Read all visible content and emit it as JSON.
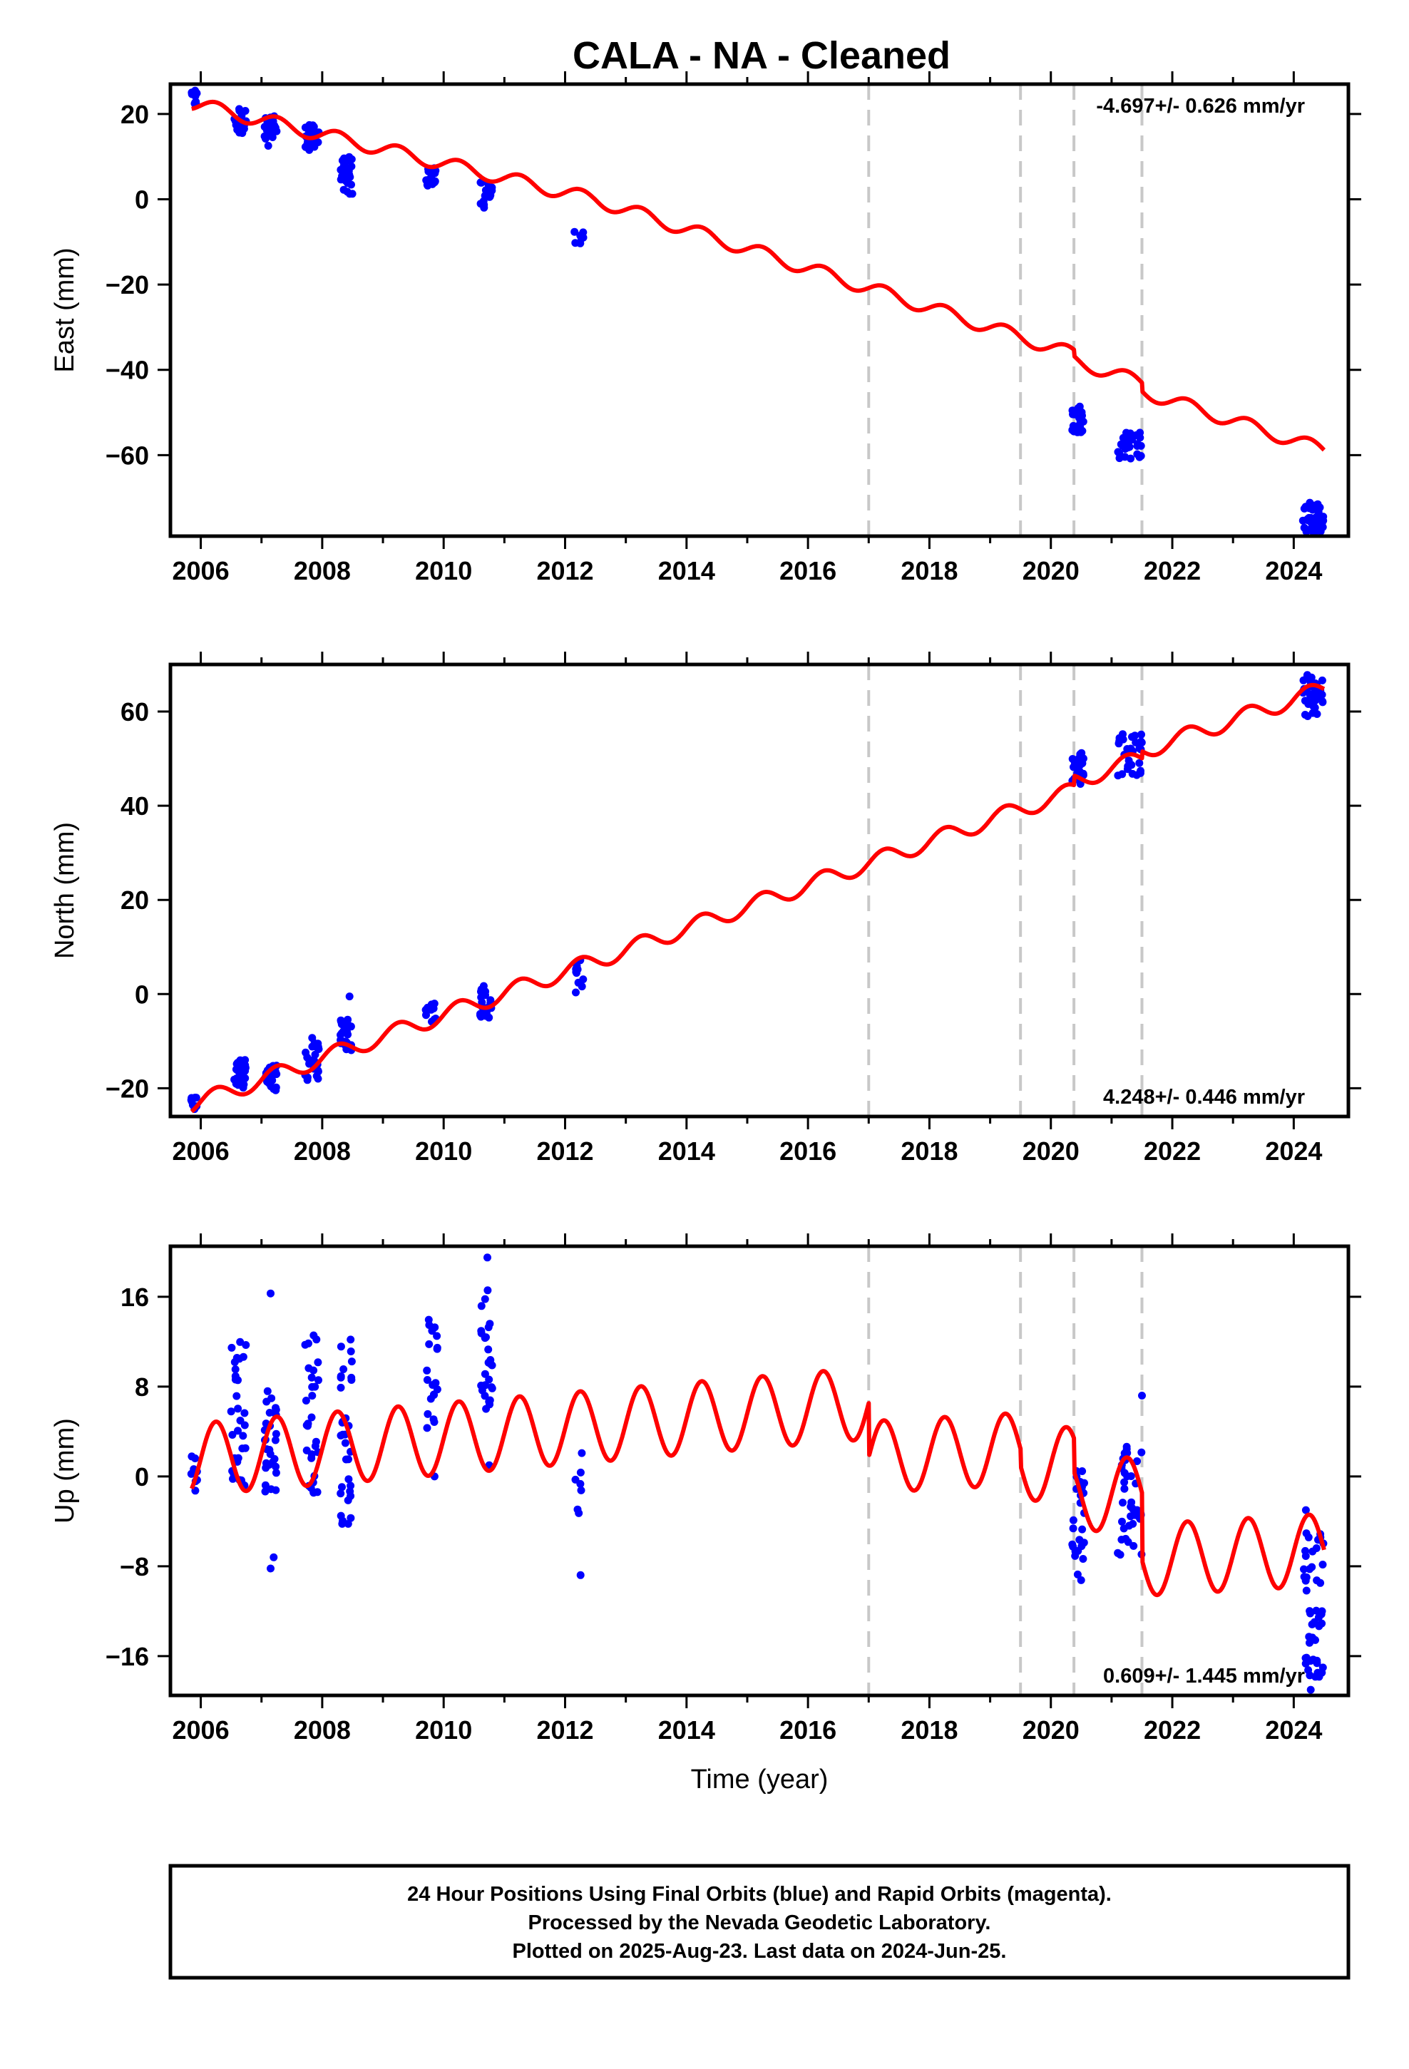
{
  "title": "CALA  - NA - Cleaned",
  "x_axis_label": "Time (year)",
  "x_ticks": [
    2006,
    2008,
    2010,
    2012,
    2014,
    2016,
    2018,
    2020,
    2022,
    2024
  ],
  "x_range": [
    2005.5,
    2024.9
  ],
  "step_epochs": [
    2017.0,
    2019.5,
    2020.38,
    2021.5
  ],
  "colors": {
    "data_points": "#0000ff",
    "model_line": "#ff0000",
    "step_lines": "#c8c8c8",
    "frame": "#000000"
  },
  "footer": {
    "line1": "24 Hour Positions Using Final Orbits (blue) and Rapid Orbits (magenta).",
    "line2": "Processed by the Nevada Geodetic Laboratory.",
    "line3": "Plotted on 2025-Aug-23. Last data on 2024-Jun-25."
  },
  "chart_data": [
    {
      "type": "scatter",
      "panel": "east",
      "ylabel": "East (mm)",
      "ylim": [
        -79,
        27
      ],
      "y_ticks": [
        20,
        0,
        -20,
        -40,
        -60
      ],
      "y_tick_labels": [
        "20",
        "0",
        "−20",
        "−40",
        "−60"
      ],
      "rate_text": "-4.697+/- 0.626 mm/yr",
      "rate_position": "top-right",
      "model": {
        "name": "model fit",
        "start_value": 22.5,
        "segments": [
          {
            "from": 2005.85,
            "to": 2012.5,
            "slope": -3.4
          },
          {
            "from": 2012.5,
            "to": 2024.5,
            "slope": -4.6
          }
        ],
        "seasonal_amplitude": 1.6,
        "steps": [
          {
            "x": 2020.38,
            "dy": -1.5
          },
          {
            "x": 2021.5,
            "dy": -2.0
          }
        ]
      },
      "clusters": [
        {
          "x": [
            2005.83,
            2005.95
          ],
          "y": [
            21.5,
            25.5
          ],
          "n": 10
        },
        {
          "x": [
            2006.55,
            2006.75
          ],
          "y": [
            15.5,
            21.5
          ],
          "n": 28
        },
        {
          "x": [
            2007.05,
            2007.25
          ],
          "y": [
            12.5,
            19.5
          ],
          "n": 26
        },
        {
          "x": [
            2007.7,
            2007.95
          ],
          "y": [
            11.5,
            17.5
          ],
          "n": 26
        },
        {
          "x": [
            2008.3,
            2008.5
          ],
          "y": [
            1,
            10
          ],
          "n": 30
        },
        {
          "x": [
            2009.7,
            2009.9
          ],
          "y": [
            3,
            7.5
          ],
          "n": 20
        },
        {
          "x": [
            2010.6,
            2010.8
          ],
          "y": [
            -2,
            4
          ],
          "n": 22
        },
        {
          "x": [
            2012.15,
            2012.3
          ],
          "y": [
            -11,
            -6
          ],
          "n": 8
        },
        {
          "x": [
            2020.35,
            2020.55
          ],
          "y": [
            -55,
            -48.5
          ],
          "n": 22
        },
        {
          "x": [
            2021.1,
            2021.5
          ],
          "y": [
            -61,
            -54.5
          ],
          "n": 30
        },
        {
          "x": [
            2024.15,
            2024.5
          ],
          "y": [
            -78,
            -71
          ],
          "n": 40
        }
      ]
    },
    {
      "type": "scatter",
      "panel": "north",
      "ylabel": "North (mm)",
      "ylim": [
        -26,
        70
      ],
      "y_ticks": [
        60,
        40,
        20,
        0,
        -20
      ],
      "y_tick_labels": [
        "60",
        "40",
        "20",
        "0",
        "−20"
      ],
      "rate_text": "4.248+/- 0.446 mm/yr",
      "rate_position": "bottom-right",
      "model": {
        "name": "model fit",
        "start_value": -23.5,
        "segments": [
          {
            "from": 2005.85,
            "to": 2019.5,
            "slope": 4.6
          },
          {
            "from": 2019.5,
            "to": 2024.5,
            "slope": 4.4
          }
        ],
        "seasonal_amplitude": 1.8,
        "steps": [
          {
            "x": 2020.38,
            "dy": 2.0
          },
          {
            "x": 2021.5,
            "dy": 1.5
          }
        ]
      },
      "clusters": [
        {
          "x": [
            2005.83,
            2005.95
          ],
          "y": [
            -24.5,
            -21.5
          ],
          "n": 8
        },
        {
          "x": [
            2006.55,
            2006.75
          ],
          "y": [
            -20,
            -14
          ],
          "n": 26
        },
        {
          "x": [
            2007.05,
            2007.25
          ],
          "y": [
            -20.5,
            -15
          ],
          "n": 24
        },
        {
          "x": [
            2007.7,
            2007.95
          ],
          "y": [
            -18.5,
            -9
          ],
          "n": 26
        },
        {
          "x": [
            2008.3,
            2008.5
          ],
          "y": [
            -12,
            -5
          ],
          "n": 28
        },
        {
          "x": [
            2009.7,
            2009.9
          ],
          "y": [
            -6,
            -1.5
          ],
          "n": 14
        },
        {
          "x": [
            2010.6,
            2010.8
          ],
          "y": [
            -5,
            2.5
          ],
          "n": 22
        },
        {
          "x": [
            2012.15,
            2012.3
          ],
          "y": [
            0,
            8
          ],
          "n": 10
        },
        {
          "x": [
            2020.35,
            2020.55
          ],
          "y": [
            44.5,
            51.5
          ],
          "n": 22
        },
        {
          "x": [
            2021.1,
            2021.5
          ],
          "y": [
            46,
            55.5
          ],
          "n": 30
        },
        {
          "x": [
            2024.15,
            2024.5
          ],
          "y": [
            59,
            68
          ],
          "n": 40
        }
      ],
      "outliers": [
        {
          "x": 2008.45,
          "y": -0.5
        }
      ]
    },
    {
      "type": "scatter",
      "panel": "up",
      "ylabel": "Up (mm)",
      "ylim": [
        -19.5,
        20.5
      ],
      "y_ticks": [
        16,
        8,
        0,
        -8,
        -16
      ],
      "y_tick_labels": [
        "16",
        "8",
        "0",
        "−8",
        "−16"
      ],
      "rate_text": "0.609+/- 1.445 mm/yr",
      "rate_position": "bottom-right",
      "model": {
        "name": "model fit",
        "start_value": 1.5,
        "segments": [
          {
            "from": 2005.85,
            "to": 2017.0,
            "slope": 0.45
          },
          {
            "from": 2017.0,
            "to": 2024.5,
            "slope": 0.3
          }
        ],
        "seasonal_amplitude": 3.2,
        "steps": [
          {
            "x": 2017.0,
            "dy": -4.8
          },
          {
            "x": 2019.5,
            "dy": -1.5
          },
          {
            "x": 2020.38,
            "dy": -3.0
          },
          {
            "x": 2021.5,
            "dy": -6.0
          }
        ]
      },
      "clusters": [
        {
          "x": [
            2005.83,
            2005.95
          ],
          "y": [
            -2.5,
            2.5
          ],
          "n": 8
        },
        {
          "x": [
            2006.5,
            2006.75
          ],
          "y": [
            -1.5,
            12.5
          ],
          "n": 32
        },
        {
          "x": [
            2007.05,
            2007.25
          ],
          "y": [
            -2,
            8
          ],
          "n": 28
        },
        {
          "x": [
            2007.7,
            2007.95
          ],
          "y": [
            -1.5,
            13
          ],
          "n": 30
        },
        {
          "x": [
            2008.3,
            2008.5
          ],
          "y": [
            -4.5,
            12.5
          ],
          "n": 34
        },
        {
          "x": [
            2009.7,
            2009.9
          ],
          "y": [
            4,
            14
          ],
          "n": 20
        },
        {
          "x": [
            2010.6,
            2010.8
          ],
          "y": [
            6,
            17
          ],
          "n": 26
        },
        {
          "x": [
            2012.15,
            2012.3
          ],
          "y": [
            -9,
            3.5
          ],
          "n": 8
        },
        {
          "x": [
            2020.35,
            2020.55
          ],
          "y": [
            -9.5,
            1.5
          ],
          "n": 28
        },
        {
          "x": [
            2021.1,
            2021.5
          ],
          "y": [
            -7,
            3.5
          ],
          "n": 40
        },
        {
          "x": [
            2024.15,
            2024.5
          ],
          "y": [
            -18,
            -5
          ],
          "n": 50
        }
      ],
      "outliers": [
        {
          "x": 2007.15,
          "y": 16.3
        },
        {
          "x": 2007.15,
          "y": -8.2
        },
        {
          "x": 2007.2,
          "y": -7.2
        },
        {
          "x": 2009.85,
          "y": 0
        },
        {
          "x": 2010.72,
          "y": 19.5
        },
        {
          "x": 2010.75,
          "y": 1
        },
        {
          "x": 2021.5,
          "y": 7.2
        },
        {
          "x": 2024.2,
          "y": -3
        },
        {
          "x": 2024.28,
          "y": -19
        }
      ]
    }
  ]
}
